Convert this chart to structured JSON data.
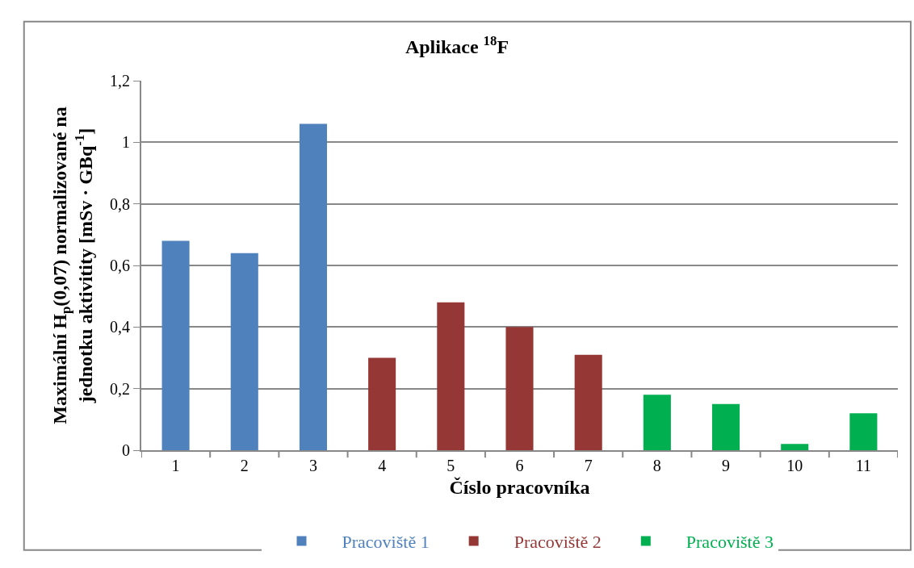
{
  "chart_data": {
    "type": "bar",
    "title": "Aplikace $^{18}$F",
    "xlabel": "Číslo pracovníka",
    "ylabel": "Maximální H$_{p}$(0,07) normalizované na jednotku aktivitity [mSv · GBq$^{-1}$]",
    "categories": [
      "1",
      "2",
      "3",
      "4",
      "5",
      "6",
      "7",
      "8",
      "9",
      "10",
      "11"
    ],
    "series": [
      {
        "name": "Pracoviště 1",
        "color": "#4f81bd",
        "values": [
          0.68,
          0.64,
          1.06,
          null,
          null,
          null,
          null,
          null,
          null,
          null,
          null
        ]
      },
      {
        "name": "Pracoviště 2",
        "color": "#953735",
        "values": [
          null,
          null,
          null,
          0.3,
          0.48,
          0.4,
          0.31,
          null,
          null,
          null,
          null
        ]
      },
      {
        "name": "Pracoviště 3",
        "color": "#00b050",
        "values": [
          null,
          null,
          null,
          null,
          null,
          null,
          null,
          0.18,
          0.15,
          0.02,
          0.12
        ]
      }
    ],
    "ylim": [
      0,
      1.2
    ],
    "yticks": [
      0,
      {
        "value": 0.2,
        "label": "0,2"
      },
      {
        "value": 0.4,
        "label": "0,4"
      },
      {
        "value": 0.6,
        "label": "0,6"
      },
      {
        "value": 0.8,
        "label": "0,8"
      },
      1,
      {
        "value": 1.2,
        "label": "1,2"
      }
    ],
    "grid": "y",
    "legend": "bottom"
  }
}
